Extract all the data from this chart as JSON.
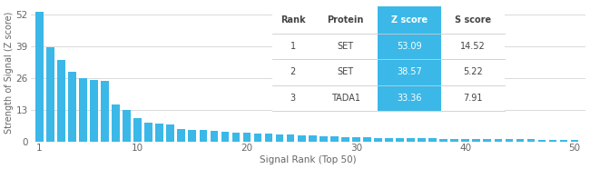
{
  "xlabel": "Signal Rank (Top 50)",
  "ylabel": "Strength of Signal (Z score)",
  "bar_color": "#3BB8E8",
  "n_bars": 50,
  "bar_values": [
    53.09,
    38.57,
    33.36,
    28.5,
    25.8,
    25.2,
    24.8,
    15.0,
    12.8,
    9.5,
    7.8,
    7.2,
    6.8,
    5.2,
    4.8,
    4.5,
    4.2,
    3.9,
    3.7,
    3.5,
    3.3,
    3.1,
    2.9,
    2.7,
    2.5,
    2.3,
    2.1,
    1.9,
    1.8,
    1.7,
    1.6,
    1.5,
    1.4,
    1.3,
    1.25,
    1.2,
    1.15,
    1.1,
    1.05,
    1.0,
    0.95,
    0.92,
    0.88,
    0.85,
    0.82,
    0.78,
    0.75,
    0.72,
    0.68,
    0.65
  ],
  "yticks": [
    0,
    13,
    26,
    39,
    52
  ],
  "ylim": [
    0,
    56
  ],
  "xticks": [
    1,
    10,
    20,
    30,
    40,
    50
  ],
  "table_header_bg": "#3BB8E8",
  "table_header_color": "#ffffff",
  "table_text_color": "#444444",
  "table_headers": [
    "Rank",
    "Protein",
    "Z score",
    "S score"
  ],
  "table_rows": [
    [
      "1",
      "SET",
      "53.09",
      "14.52"
    ],
    [
      "2",
      "SET",
      "38.57",
      "5.22"
    ],
    [
      "3",
      "TADA1",
      "33.36",
      "7.91"
    ]
  ],
  "bg_color": "#ffffff",
  "grid_color": "#cccccc",
  "axis_label_color": "#666666",
  "tick_label_color": "#666666"
}
